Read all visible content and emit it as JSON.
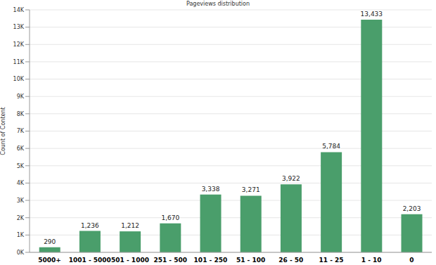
{
  "chart_data": {
    "type": "bar",
    "title": "Pageviews distribution",
    "ylabel": "Count of Content",
    "categories": [
      "5000+",
      "1001 - 5000",
      "501 - 1000",
      "251 - 500",
      "101 - 250",
      "51 - 100",
      "26 - 50",
      "11 - 25",
      "1 - 10",
      "0"
    ],
    "values": [
      290,
      1236,
      1212,
      1670,
      3338,
      3271,
      3922,
      5784,
      13433,
      2203
    ],
    "value_labels": [
      "290",
      "1,236",
      "1,212",
      "1,670",
      "3,338",
      "3,271",
      "3,922",
      "5,784",
      "13,433",
      "2,203"
    ],
    "data_labels": true,
    "color": "#4a9e6b",
    "ylim": [
      0,
      14000
    ],
    "yticks": [
      {
        "value": 0,
        "label": "0K"
      },
      {
        "value": 1000,
        "label": "1K"
      },
      {
        "value": 2000,
        "label": "2K"
      },
      {
        "value": 3000,
        "label": "3K"
      },
      {
        "value": 4000,
        "label": "4K"
      },
      {
        "value": 5000,
        "label": "5K"
      },
      {
        "value": 6000,
        "label": "6K"
      },
      {
        "value": 7000,
        "label": "7K"
      },
      {
        "value": 8000,
        "label": "8K"
      },
      {
        "value": 9000,
        "label": "9K"
      },
      {
        "value": 10000,
        "label": "10K"
      },
      {
        "value": 11000,
        "label": "11K"
      },
      {
        "value": 12000,
        "label": "12K"
      },
      {
        "value": 13000,
        "label": "13K"
      },
      {
        "value": 14000,
        "label": "14K"
      }
    ],
    "grid": true
  }
}
